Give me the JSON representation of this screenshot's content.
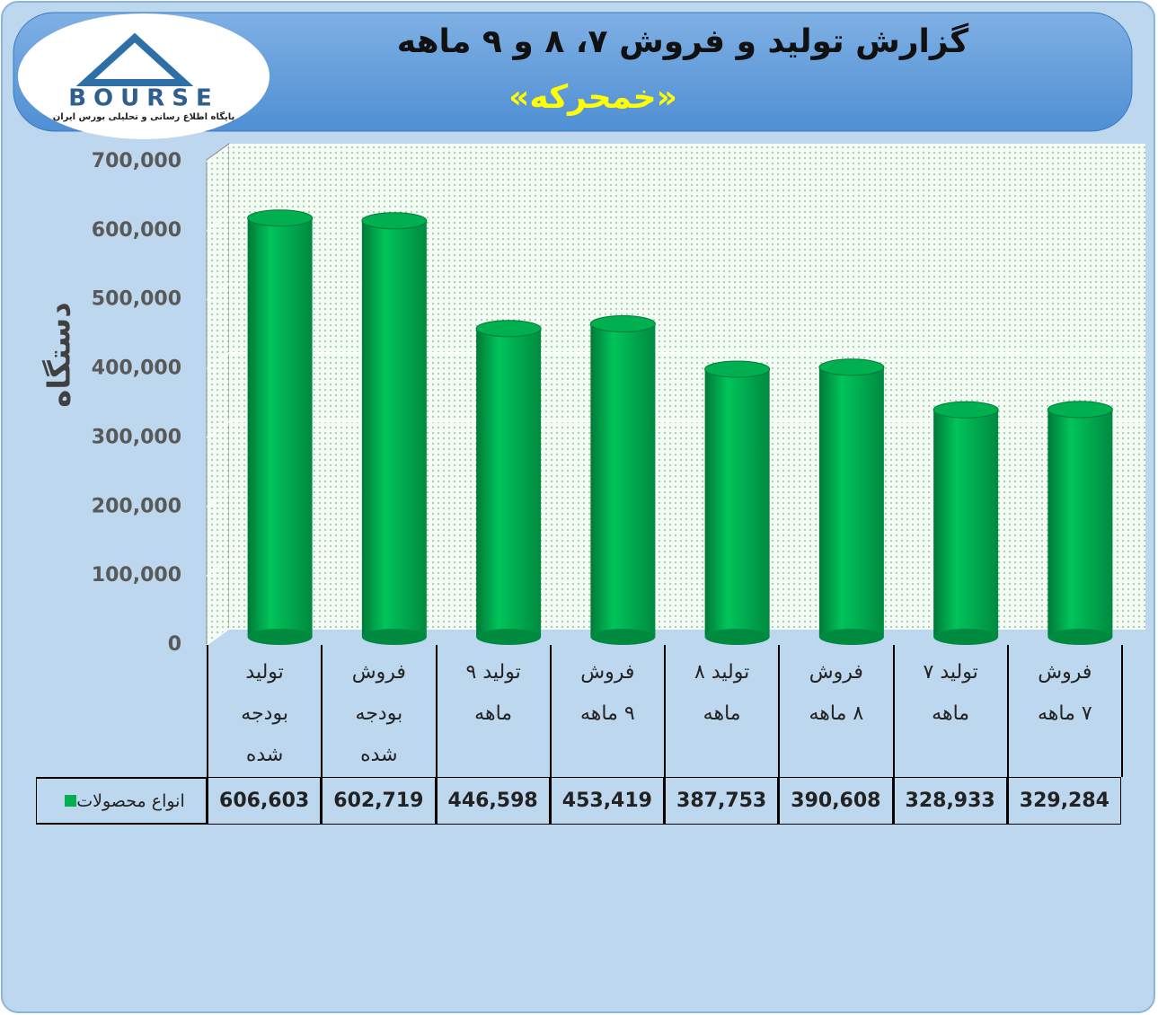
{
  "logo": {
    "name": "BOURSE",
    "tagline": "پایگاه اطلاع رسانی و تحلیلی بورس ایران"
  },
  "chart_data": {
    "type": "bar",
    "title": "گزارش تولید و فروش ۷، ۸ و ۹ ماهه",
    "subtitle": "«خمحرکه»",
    "y_label": "دستگاه",
    "categories": [
      "تولید بودجه شده",
      "فروش بودجه شده",
      "تولید ۹ ماهه",
      "فروش ۹ ماهه",
      "تولید ۸ ماهه",
      "فروش ۸ ماهه",
      "تولید ۷ ماهه",
      "فروش ۷ ماهه"
    ],
    "series": [
      {
        "name": "انواع محصولات",
        "color": "#00b050",
        "values": [
          606603,
          602719,
          446598,
          453419,
          387753,
          390608,
          328933,
          329284
        ],
        "value_labels": [
          "606,603",
          "602,719",
          "446,598",
          "453,419",
          "387,753",
          "390,608",
          "328,933",
          "329,284"
        ]
      }
    ],
    "ylim": [
      0,
      700000
    ],
    "yticks": [
      0,
      {
        "value": 100000,
        "label": "100,000"
      },
      {
        "value": 200000,
        "label": "200,000"
      },
      {
        "value": 300000,
        "label": "300,000"
      },
      {
        "value": 400000,
        "label": "400,000"
      },
      {
        "value": 500000,
        "label": "500,000"
      },
      {
        "value": 600000,
        "label": "600,000"
      },
      {
        "value": 700000,
        "label": "700,000"
      }
    ],
    "grid": true
  }
}
